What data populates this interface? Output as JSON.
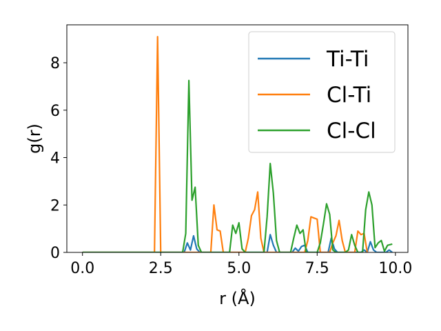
{
  "chart_data": {
    "type": "line",
    "title": "",
    "xlabel": "r (Å)",
    "ylabel": "g(r)",
    "xlim": [
      -0.5,
      10.4
    ],
    "ylim": [
      0,
      9.6
    ],
    "xticks": [
      0.0,
      2.5,
      5.0,
      7.5,
      10.0
    ],
    "xtick_labels": [
      "0.0",
      "2.5",
      "5.0",
      "7.5",
      "10.0"
    ],
    "yticks": [
      0,
      2,
      4,
      6,
      8
    ],
    "ytick_labels": [
      "0",
      "2",
      "4",
      "6",
      "8"
    ],
    "grid": false,
    "legend": "top-right",
    "series": [
      {
        "name": "Ti-Ti",
        "color": "#1f77b4",
        "points": [
          [
            0,
            0
          ],
          [
            3.25,
            0
          ],
          [
            3.35,
            0.4
          ],
          [
            3.45,
            0.1
          ],
          [
            3.55,
            0.7
          ],
          [
            3.65,
            0.15
          ],
          [
            3.75,
            0
          ],
          [
            5.9,
            0
          ],
          [
            6.0,
            0.75
          ],
          [
            6.1,
            0.3
          ],
          [
            6.2,
            0
          ],
          [
            6.7,
            0
          ],
          [
            6.8,
            0.18
          ],
          [
            6.9,
            0.05
          ],
          [
            7.0,
            0.25
          ],
          [
            7.1,
            0.3
          ],
          [
            7.2,
            0
          ],
          [
            7.85,
            0
          ],
          [
            7.95,
            0.6
          ],
          [
            8.05,
            0.15
          ],
          [
            8.15,
            0
          ],
          [
            8.9,
            0
          ],
          [
            9.0,
            0.1
          ],
          [
            9.1,
            0
          ],
          [
            9.2,
            0.45
          ],
          [
            9.3,
            0.1
          ],
          [
            9.4,
            0
          ],
          [
            9.7,
            0
          ],
          [
            9.8,
            0.1
          ],
          [
            9.9,
            0
          ]
        ]
      },
      {
        "name": "Cl-Ti",
        "color": "#ff7f0e",
        "points": [
          [
            0,
            0
          ],
          [
            2.3,
            0
          ],
          [
            2.4,
            9.1
          ],
          [
            2.5,
            0
          ],
          [
            4.1,
            0
          ],
          [
            4.2,
            2.0
          ],
          [
            4.3,
            0.95
          ],
          [
            4.4,
            0.9
          ],
          [
            4.5,
            0
          ],
          [
            5.2,
            0
          ],
          [
            5.3,
            0.6
          ],
          [
            5.4,
            1.55
          ],
          [
            5.5,
            1.8
          ],
          [
            5.6,
            2.55
          ],
          [
            5.7,
            0.6
          ],
          [
            5.8,
            0
          ],
          [
            7.1,
            0
          ],
          [
            7.2,
            0.5
          ],
          [
            7.3,
            1.5
          ],
          [
            7.4,
            1.45
          ],
          [
            7.5,
            1.4
          ],
          [
            7.6,
            0
          ],
          [
            7.9,
            0
          ],
          [
            8.0,
            0.4
          ],
          [
            8.1,
            0.7
          ],
          [
            8.2,
            1.35
          ],
          [
            8.3,
            0.5
          ],
          [
            8.4,
            0
          ],
          [
            8.7,
            0
          ],
          [
            8.8,
            0.9
          ],
          [
            8.9,
            0.75
          ],
          [
            9.0,
            0.8
          ],
          [
            9.1,
            0
          ]
        ]
      },
      {
        "name": "Cl-Cl",
        "color": "#2ca02c",
        "points": [
          [
            0,
            0
          ],
          [
            3.2,
            0
          ],
          [
            3.3,
            0.8
          ],
          [
            3.4,
            7.25
          ],
          [
            3.5,
            2.2
          ],
          [
            3.6,
            2.75
          ],
          [
            3.7,
            0.3
          ],
          [
            3.8,
            0
          ],
          [
            4.7,
            0
          ],
          [
            4.8,
            1.15
          ],
          [
            4.9,
            0.8
          ],
          [
            5.0,
            1.25
          ],
          [
            5.1,
            0.15
          ],
          [
            5.2,
            0
          ],
          [
            5.8,
            0
          ],
          [
            5.9,
            1.5
          ],
          [
            6.0,
            3.75
          ],
          [
            6.1,
            2.5
          ],
          [
            6.2,
            0.5
          ],
          [
            6.3,
            0
          ],
          [
            6.65,
            0
          ],
          [
            6.75,
            0.6
          ],
          [
            6.85,
            1.15
          ],
          [
            6.95,
            0.8
          ],
          [
            7.05,
            0.95
          ],
          [
            7.15,
            0
          ],
          [
            7.5,
            0
          ],
          [
            7.6,
            0.4
          ],
          [
            7.7,
            1.2
          ],
          [
            7.8,
            2.05
          ],
          [
            7.9,
            1.6
          ],
          [
            8.0,
            0.1
          ],
          [
            8.1,
            0
          ],
          [
            8.4,
            0
          ],
          [
            8.5,
            0.1
          ],
          [
            8.6,
            0.75
          ],
          [
            8.7,
            0.3
          ],
          [
            8.8,
            0
          ],
          [
            8.95,
            0
          ],
          [
            9.05,
            1.8
          ],
          [
            9.15,
            2.55
          ],
          [
            9.25,
            2.0
          ],
          [
            9.35,
            0.2
          ],
          [
            9.45,
            0.4
          ],
          [
            9.55,
            0.5
          ],
          [
            9.65,
            0.05
          ],
          [
            9.75,
            0.3
          ],
          [
            9.9,
            0.35
          ]
        ]
      }
    ]
  }
}
